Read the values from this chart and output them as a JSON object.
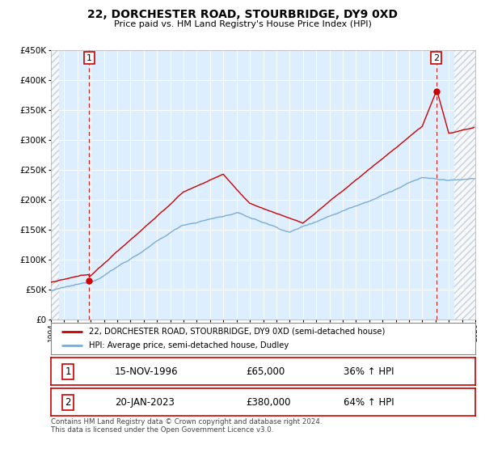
{
  "title": "22, DORCHESTER ROAD, STOURBRIDGE, DY9 0XD",
  "subtitle": "Price paid vs. HM Land Registry's House Price Index (HPI)",
  "legend_line1": "22, DORCHESTER ROAD, STOURBRIDGE, DY9 0XD (semi-detached house)",
  "legend_line2": "HPI: Average price, semi-detached house, Dudley",
  "sale1_date": "15-NOV-1996",
  "sale1_price": "£65,000",
  "sale1_hpi": "36% ↑ HPI",
  "sale1_year": 1996.88,
  "sale1_value": 65000,
  "sale2_date": "20-JAN-2023",
  "sale2_price": "£380,000",
  "sale2_hpi": "64% ↑ HPI",
  "sale2_year": 2023.05,
  "sale2_value": 380000,
  "hpi_color": "#7aadd4",
  "price_color": "#cc0000",
  "plot_bg_color": "#ddeeff",
  "grid_color": "#ffffff",
  "vline_color": "#cc0000",
  "xmin": 1994,
  "xmax": 2026,
  "ymin": 0,
  "ymax": 450000,
  "yticks": [
    0,
    50000,
    100000,
    150000,
    200000,
    250000,
    300000,
    350000,
    400000,
    450000
  ],
  "footer_text": "Contains HM Land Registry data © Crown copyright and database right 2024.\nThis data is licensed under the Open Government Licence v3.0."
}
